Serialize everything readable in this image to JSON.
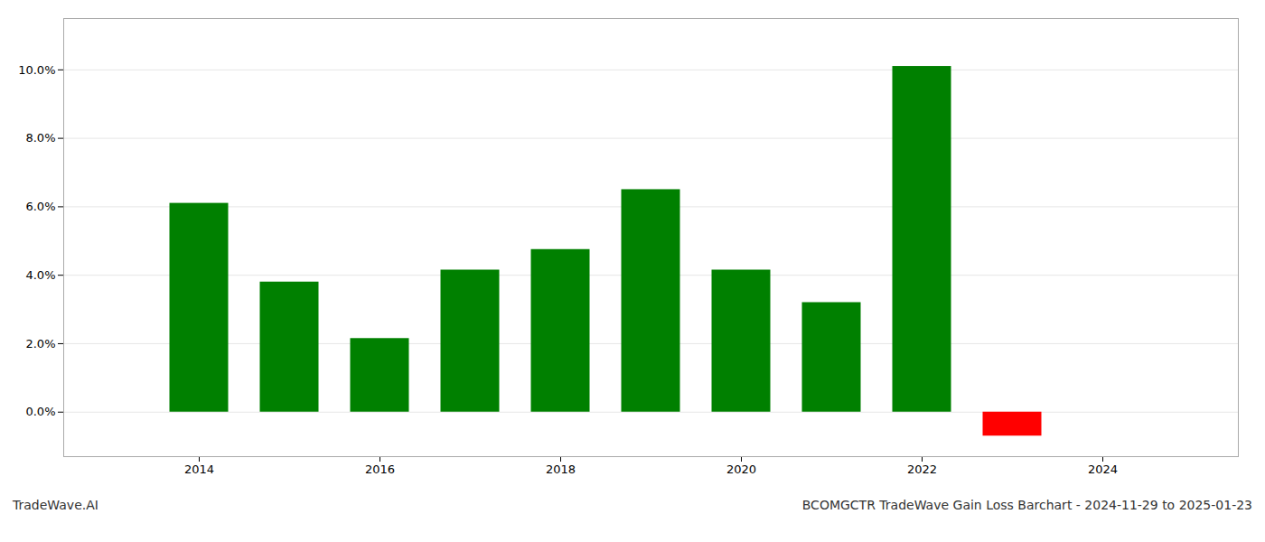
{
  "chart_data": {
    "type": "bar",
    "title": "BCOMGCTR TradeWave Gain Loss Barchart - 2024-11-29 to 2025-01-23",
    "annotations": [
      "TradeWave.AI"
    ],
    "x": [
      2014,
      2015,
      2016,
      2017,
      2018,
      2019,
      2020,
      2021,
      2022,
      2023
    ],
    "values": [
      0.061,
      0.038,
      0.0215,
      0.0415,
      0.0475,
      0.065,
      0.0415,
      0.032,
      0.101,
      -0.007
    ],
    "colors": [
      "#008000",
      "#008000",
      "#008000",
      "#008000",
      "#008000",
      "#008000",
      "#008000",
      "#008000",
      "#008000",
      "#ff0000"
    ],
    "xlim": [
      2012.5,
      2025.5
    ],
    "xticks": [
      2014,
      2016,
      2018,
      2020,
      2022,
      2024
    ],
    "ylim": [
      -0.013,
      0.115
    ],
    "yticks": [
      {
        "value": 0.0,
        "label": "0.0%"
      },
      {
        "value": 0.02,
        "label": "2.0%"
      },
      {
        "value": 0.04,
        "label": "4.0%"
      },
      {
        "value": 0.06,
        "label": "6.0%"
      },
      {
        "value": 0.08,
        "label": "8.0%"
      },
      {
        "value": 0.1,
        "label": "10.0%"
      }
    ],
    "grid": true
  }
}
